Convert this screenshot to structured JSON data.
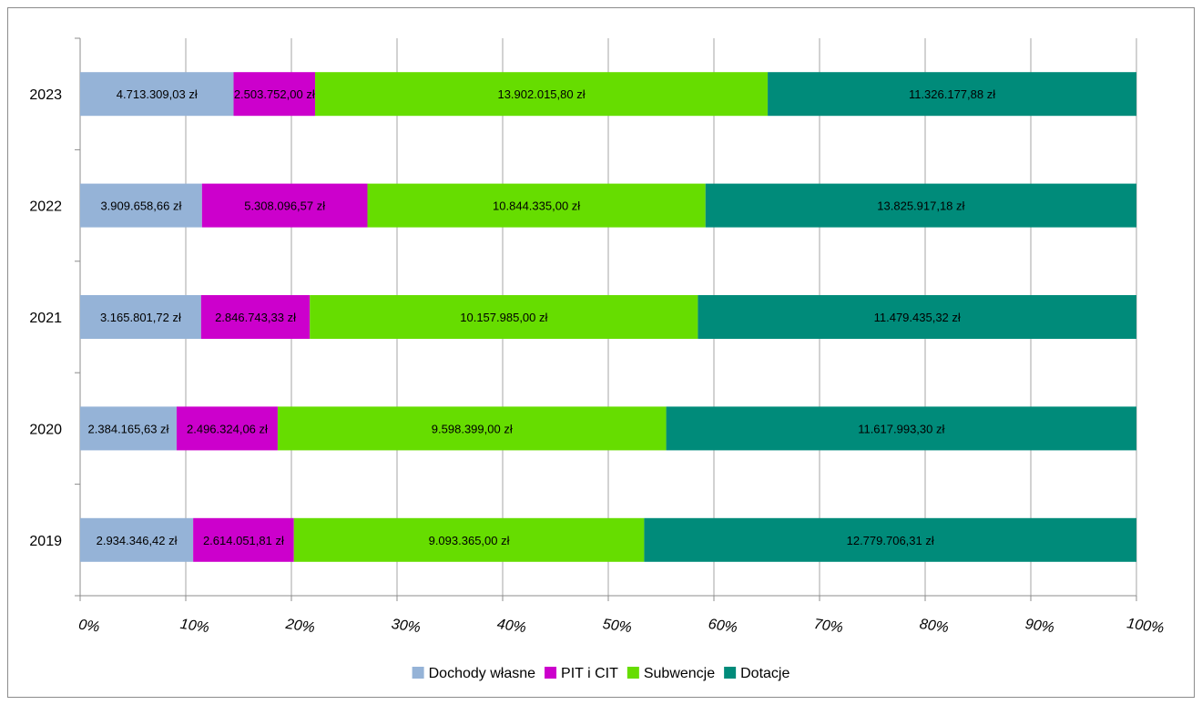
{
  "chart_data": {
    "type": "bar",
    "orientation": "horizontal",
    "stacked": "percent",
    "categories": [
      "2019",
      "2020",
      "2021",
      "2022",
      "2023"
    ],
    "series": [
      {
        "name": "Dochody własne",
        "color": "#95b3d7",
        "values": [
          2934346.42,
          2384165.63,
          3165801.72,
          3909658.66,
          4713309.03
        ],
        "labels": [
          "2.934.346,42 zł",
          "2.384.165,63 zł",
          "3.165.801,72 zł",
          "3.909.658,66 zł",
          "4.713.309,03 zł"
        ]
      },
      {
        "name": "PIT i CIT",
        "color": "#cc00cc",
        "values": [
          2614051.81,
          2496324.06,
          2846743.33,
          5308096.57,
          2503752.0
        ],
        "labels": [
          "2.614.051,81 zł",
          "2.496.324,06 zł",
          "2.846.743,33 zł",
          "5.308.096,57 zł",
          "2.503.752,00 zł"
        ]
      },
      {
        "name": "Subwencje",
        "color": "#66dd00",
        "values": [
          9093365.0,
          9598399.0,
          10157985.0,
          10844335.0,
          13902015.8
        ],
        "labels": [
          "9.093.365,00 zł",
          "9.598.399,00 zł",
          "10.157.985,00 zł",
          "10.844.335,00 zł",
          "13.902.015,80 zł"
        ]
      },
      {
        "name": "Dotacje",
        "color": "#008b7a",
        "values": [
          12779706.31,
          11617993.3,
          11479435.32,
          13825917.18,
          11326177.88
        ],
        "labels": [
          "12.779.706,31 zł",
          "11.617.993,30 zł",
          "11.479.435,32 zł",
          "13.825.917,18 zł",
          "11.326.177,88 zł"
        ]
      }
    ],
    "x_ticks": [
      "0%",
      "10%",
      "20%",
      "30%",
      "40%",
      "50%",
      "60%",
      "70%",
      "80%",
      "90%",
      "100%"
    ],
    "xlim": [
      0,
      100
    ],
    "grid": true,
    "legend_position": "bottom"
  }
}
